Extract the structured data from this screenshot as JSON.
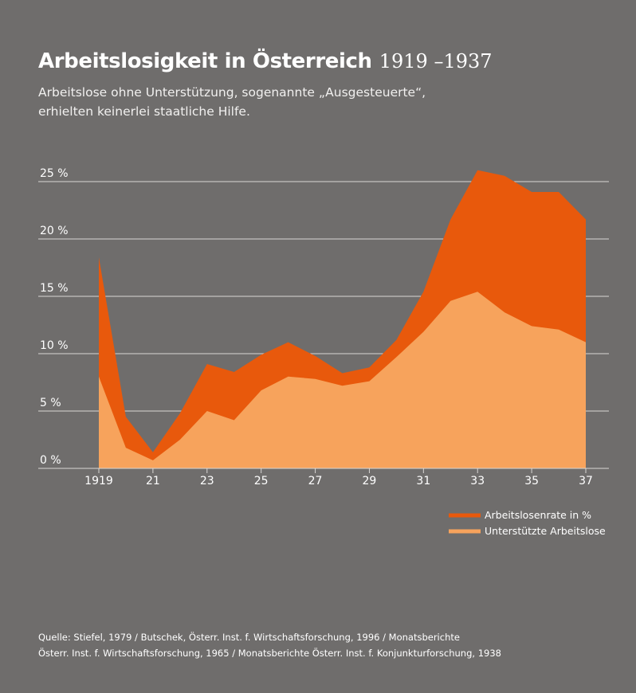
{
  "header": {
    "title": "Arbeitslosigkeit in Österreich",
    "title_years": "1919 –1937",
    "subtitle_line1": "Arbeitslose ohne Unterstützung, sogenannte „Ausgesteuerte“,",
    "subtitle_line2": "erhielten keinerlei staatliche Hilfe."
  },
  "footer": {
    "source_line1": "Quelle: Stiefel, 1979 / Butschek, Österr. Inst. f. Wirtschaftsforschung, 1996 / Monatsberichte",
    "source_line2": "Österr. Inst. f. Wirtschaftsforschung, 1965 / Monatsberichte Österr. Inst. f. Konjunkturforschung, 1938"
  },
  "colors": {
    "background": "#6f6d6c",
    "arbeitslosenrate": "#e8590c",
    "unterstuetzte": "#f7a35c",
    "gridline": "#d9d7d5"
  },
  "chart_data": {
    "type": "area",
    "x": [
      1919,
      1920,
      1921,
      1922,
      1923,
      1924,
      1925,
      1926,
      1927,
      1928,
      1929,
      1930,
      1931,
      1932,
      1933,
      1934,
      1935,
      1936,
      1937
    ],
    "x_tick_values": [
      1919,
      1921,
      1923,
      1925,
      1927,
      1929,
      1931,
      1933,
      1935,
      1937
    ],
    "x_tick_labels": [
      "1919",
      "21",
      "23",
      "25",
      "27",
      "29",
      "31",
      "33",
      "35",
      "37"
    ],
    "y_ticks": [
      0,
      5,
      10,
      15,
      20,
      25
    ],
    "y_tick_labels": [
      "0 %",
      "5 %",
      "10 %",
      "15 %",
      "20 %",
      "25 %"
    ],
    "ylim": [
      0,
      26
    ],
    "xlim": [
      1919,
      1937
    ],
    "grid": true,
    "legend_position": "bottom-right",
    "series": [
      {
        "name": "Arbeitslosenrate in %",
        "color": "#e8590c",
        "values": [
          18.4,
          4.5,
          1.4,
          4.8,
          9.1,
          8.4,
          9.9,
          11.0,
          9.8,
          8.3,
          8.8,
          11.2,
          15.4,
          21.7,
          26.0,
          25.5,
          24.1,
          24.1,
          21.7
        ]
      },
      {
        "name": "Unterstützte Arbeitslose",
        "color": "#f7a35c",
        "values": [
          8.0,
          1.8,
          0.7,
          2.5,
          5.0,
          4.2,
          6.8,
          8.0,
          7.8,
          7.2,
          7.6,
          9.7,
          11.9,
          14.6,
          15.4,
          13.6,
          12.4,
          12.1,
          11.0
        ]
      }
    ]
  }
}
